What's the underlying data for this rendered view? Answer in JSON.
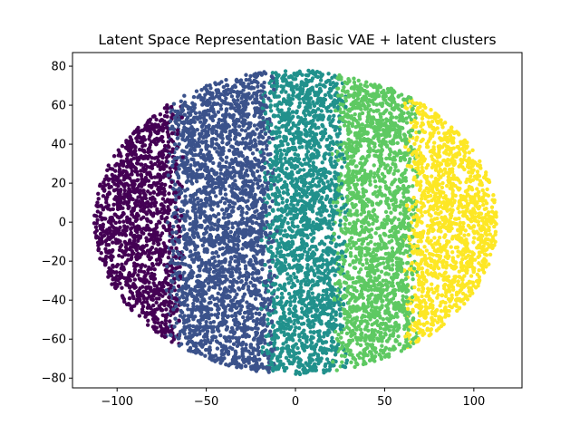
{
  "chart_data": {
    "type": "scatter",
    "title": "Latent Space Representation Basic VAE + latent clusters",
    "xlabel": "",
    "ylabel": "",
    "xlim": [
      -125,
      127
    ],
    "ylim": [
      -85,
      87
    ],
    "xticks": [
      -100,
      -50,
      0,
      50,
      100
    ],
    "yticks": [
      -80,
      -60,
      -40,
      -20,
      0,
      20,
      40,
      60,
      80
    ],
    "xtick_labels": [
      "−100",
      "−50",
      "0",
      "50",
      "100"
    ],
    "ytick_labels": [
      "−80",
      "−60",
      "−40",
      "−20",
      "0",
      "20",
      "40",
      "60",
      "80"
    ],
    "grid": false,
    "legend": "none",
    "cloud": {
      "center": [
        0,
        0
      ],
      "x_radius": 113,
      "y_radius": 78,
      "point_count": 9000
    },
    "clusters": [
      {
        "color": "#440154",
        "x_range": [
          -115,
          -68
        ]
      },
      {
        "color": "#3b528b",
        "x_range": [
          -68,
          -15
        ]
      },
      {
        "color": "#21918c",
        "x_range": [
          -15,
          25
        ]
      },
      {
        "color": "#5ec962",
        "x_range": [
          25,
          65
        ]
      },
      {
        "color": "#fde725",
        "x_range": [
          65,
          115
        ]
      }
    ]
  }
}
